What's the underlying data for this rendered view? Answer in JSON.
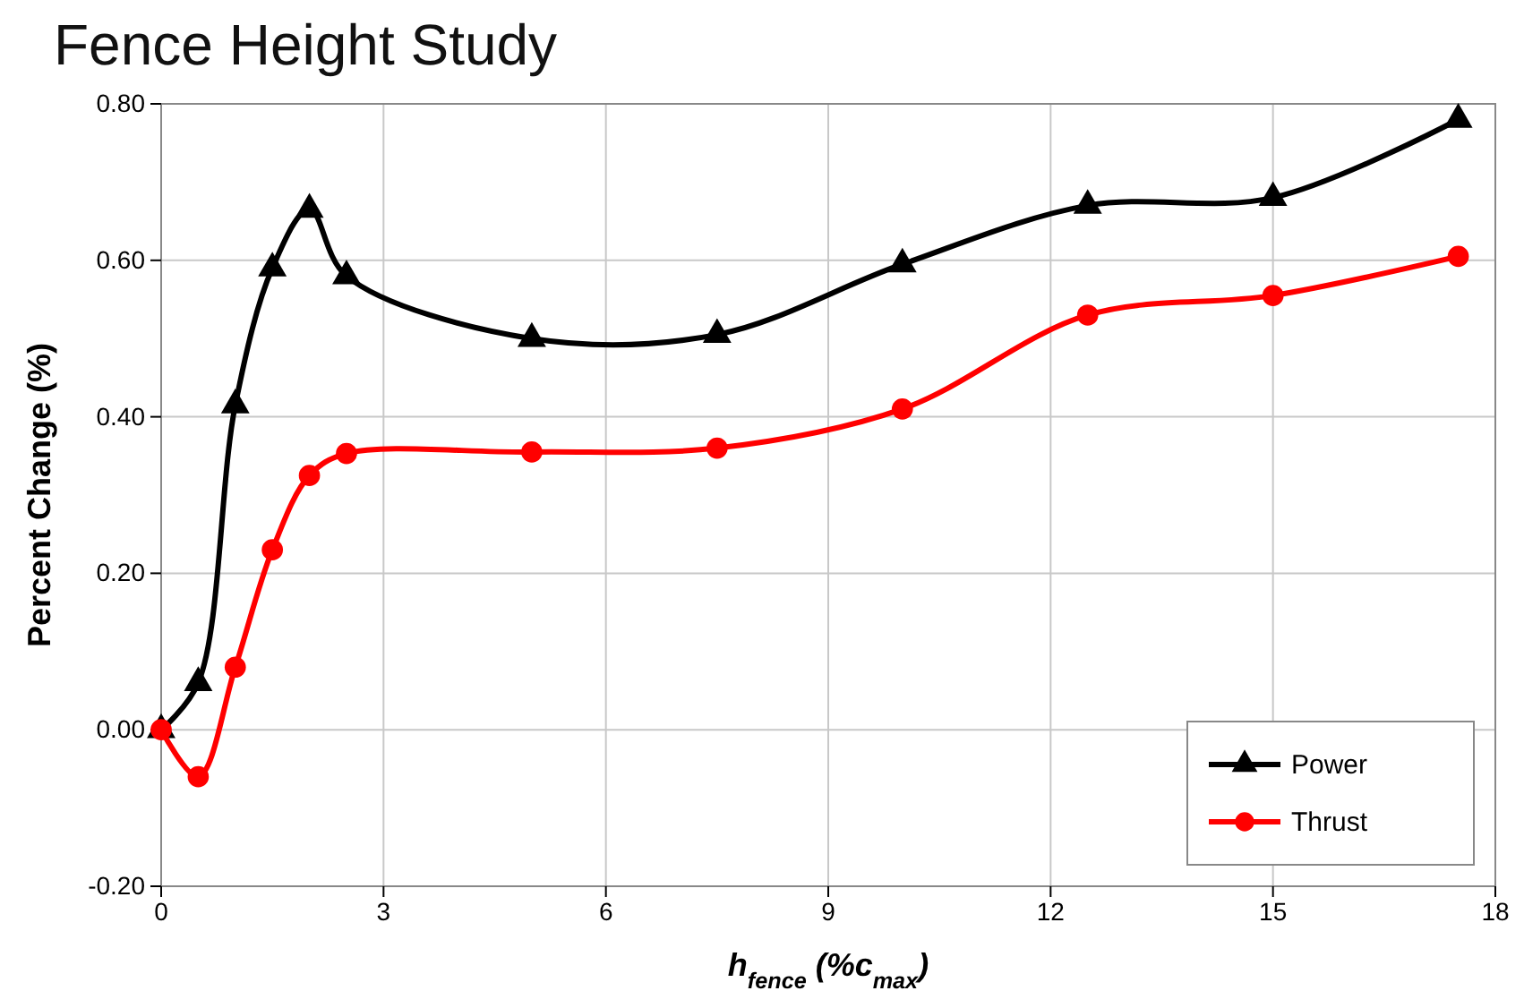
{
  "chart_data": {
    "type": "line",
    "title": "Fence Height Study",
    "xlabel": "h$_{fence}$ (%c$_{max}$)",
    "ylabel": "Percent Change (%)",
    "xlim": [
      0,
      18
    ],
    "xticks": [
      0,
      3,
      6,
      9,
      12,
      15,
      18
    ],
    "ylim": [
      -0.2,
      0.8
    ],
    "yticks": [
      {
        "value": -0.2,
        "label": "-0.20"
      },
      {
        "value": 0,
        "label": "0.00"
      },
      {
        "value": 0.2,
        "label": "0.20"
      },
      {
        "value": 0.4,
        "label": "0.40"
      },
      {
        "value": 0.6,
        "label": "0.60"
      },
      {
        "value": 0.8,
        "label": "0.80"
      }
    ],
    "grid": true,
    "legend": "bottom right",
    "line_style": "solid",
    "series": [
      {
        "name": "Power",
        "color": "#000000",
        "marker": "triangle",
        "x": [
          0,
          0.5,
          1,
          1.5,
          2,
          2.5,
          5,
          7.5,
          10,
          12.5,
          15,
          17.5
        ],
        "values": [
          0,
          0.06,
          0.415,
          0.59,
          0.665,
          0.58,
          0.5,
          0.505,
          0.595,
          0.67,
          0.68,
          0.78
        ]
      },
      {
        "name": "Thrust",
        "color": "#ff0000",
        "marker": "circle",
        "x": [
          0,
          0.5,
          1,
          1.5,
          2,
          2.5,
          5,
          7.5,
          10,
          12.5,
          15,
          17.5
        ],
        "values": [
          0,
          -0.06,
          0.08,
          0.23,
          0.325,
          0.353,
          0.355,
          0.36,
          0.41,
          0.53,
          0.555,
          0.605
        ]
      }
    ]
  }
}
